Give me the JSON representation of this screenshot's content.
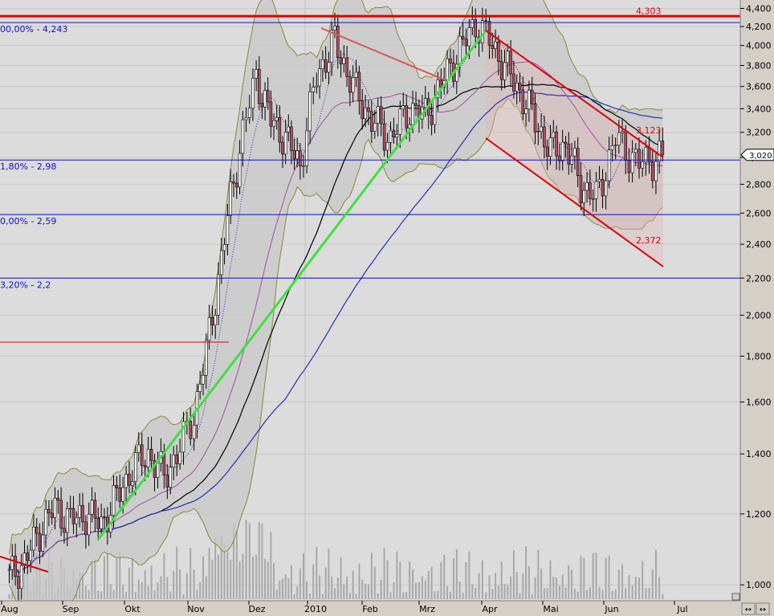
{
  "chart_data": {
    "type": "candlestick",
    "scale": "log",
    "ylim": [
      0.98,
      4.45
    ],
    "y_ticks": [
      "4,400",
      "4,200",
      "4,000",
      "3,800",
      "3,600",
      "3,400",
      "3,200",
      "3,000",
      "2,800",
      "2,600",
      "2,400",
      "2,200",
      "2,000",
      "1,800",
      "1,600",
      "1,400",
      "1,200",
      "1,000"
    ],
    "x_ticks": [
      "Aug",
      "Sep",
      "Okt",
      "Nov",
      "Dez",
      "2010",
      "Feb",
      "Mrz",
      "Apr",
      "Mai",
      "Jun",
      "Jul"
    ],
    "last_price": "3,020",
    "fib_levels": [
      {
        "label": "00,00% - 4,243",
        "value": 4.243
      },
      {
        "label": "1,80% - 2,98",
        "value": 2.98
      },
      {
        "label": "0,00% - 2,59",
        "value": 2.59
      },
      {
        "label": "3,20% - 2,2",
        "value": 2.2
      }
    ],
    "annotations": [
      {
        "label": "4,303",
        "value": 4.303
      },
      {
        "label": "3,123",
        "value": 3.123
      },
      {
        "label": "2,372",
        "value": 2.372
      }
    ],
    "close_path": [
      [
        "Aug",
        1.02
      ],
      [
        "Aug",
        1.06
      ],
      [
        "Aug",
        1.15
      ],
      [
        "Aug",
        1.22
      ],
      [
        "Sep",
        1.18
      ],
      [
        "Sep",
        1.2
      ],
      [
        "Sep",
        1.17
      ],
      [
        "Sep",
        1.25
      ],
      [
        "Okt",
        1.35
      ],
      [
        "Okt",
        1.4
      ],
      [
        "Okt",
        1.32
      ],
      [
        "Okt",
        1.42
      ],
      [
        "Nov",
        1.55
      ],
      [
        "Nov",
        1.82
      ],
      [
        "Nov",
        2.2
      ],
      [
        "Nov",
        2.7
      ],
      [
        "Nov",
        3.2
      ],
      [
        "Dez",
        3.7
      ],
      [
        "Dez",
        3.3
      ],
      [
        "Dez",
        3.15
      ],
      [
        "Dez",
        2.95
      ],
      [
        "2010",
        3.7
      ],
      [
        "2010",
        4.05
      ],
      [
        "2010",
        3.6
      ],
      [
        "Feb",
        3.3
      ],
      [
        "Feb",
        3.15
      ],
      [
        "Feb",
        3.4
      ],
      [
        "Mrz",
        3.35
      ],
      [
        "Mrz",
        3.55
      ],
      [
        "Mrz",
        3.8
      ],
      [
        "Mrz",
        4.0
      ],
      [
        "Mrz",
        4.25
      ],
      [
        "Apr",
        4.05
      ],
      [
        "Apr",
        3.8
      ],
      [
        "Apr",
        3.55
      ],
      [
        "Apr",
        3.3
      ],
      [
        "Mai",
        3.05
      ],
      [
        "Mai",
        3.1
      ],
      [
        "Mai",
        2.8
      ],
      [
        "Mai",
        2.7
      ],
      [
        "Jun",
        3.15
      ],
      [
        "Jun",
        2.95
      ],
      [
        "Jun",
        3.02
      ]
    ]
  }
}
